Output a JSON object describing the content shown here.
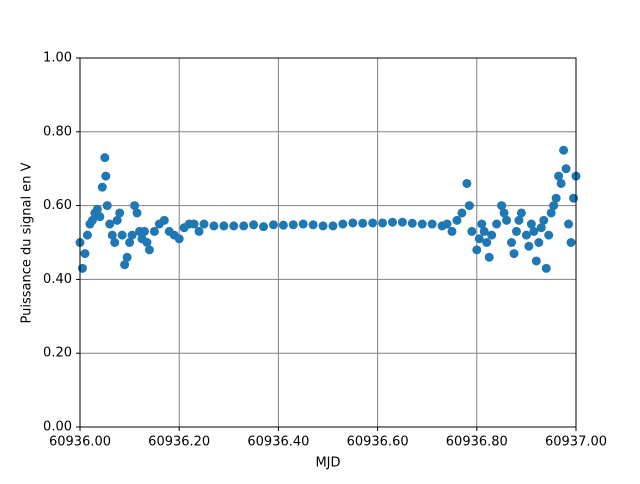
{
  "chart_data": {
    "type": "scatter",
    "xlabel": "MJD",
    "ylabel": "Puissance du signal en V",
    "color": "#1f77b4",
    "grid": true,
    "xlim": [
      60936.0,
      60937.0
    ],
    "xticks": [
      {
        "value": 60936.0,
        "label": "60936.00"
      },
      {
        "value": 60936.2,
        "label": "60936.20"
      },
      {
        "value": 60936.4,
        "label": "60936.40"
      },
      {
        "value": 60936.6,
        "label": "60936.60"
      },
      {
        "value": 60936.8,
        "label": "60936.80"
      },
      {
        "value": 60937.0,
        "label": "60937.00"
      }
    ],
    "ylim": [
      0,
      1
    ],
    "yticks": [
      {
        "value": 0,
        "label": "0.00"
      },
      {
        "value": 0.2,
        "label": "0.20"
      },
      {
        "value": 0.4,
        "label": "0.40"
      },
      {
        "value": 0.6,
        "label": "0.60"
      },
      {
        "value": 0.8,
        "label": "0.80"
      },
      {
        "value": 1,
        "label": "1.00"
      }
    ],
    "x": [
      60936.0,
      60936.005,
      60936.01,
      60936.015,
      60936.02,
      60936.025,
      60936.03,
      60936.035,
      60936.04,
      60936.045,
      60936.05,
      60936.052,
      60936.055,
      60936.06,
      60936.065,
      60936.07,
      60936.075,
      60936.08,
      60936.085,
      60936.09,
      60936.095,
      60936.1,
      60936.105,
      60936.11,
      60936.115,
      60936.12,
      60936.125,
      60936.13,
      60936.135,
      60936.14,
      60936.15,
      60936.16,
      60936.17,
      60936.18,
      60936.19,
      60936.2,
      60936.21,
      60936.22,
      60936.23,
      60936.24,
      60936.25,
      60936.27,
      60936.29,
      60936.31,
      60936.33,
      60936.35,
      60936.37,
      60936.39,
      60936.41,
      60936.43,
      60936.45,
      60936.47,
      60936.49,
      60936.51,
      60936.53,
      60936.55,
      60936.57,
      60936.59,
      60936.61,
      60936.63,
      60936.65,
      60936.67,
      60936.69,
      60936.71,
      60936.73,
      60936.74,
      60936.75,
      60936.76,
      60936.77,
      60936.78,
      60936.785,
      60936.79,
      60936.8,
      60936.805,
      60936.81,
      60936.815,
      60936.82,
      60936.825,
      60936.83,
      60936.84,
      60936.85,
      60936.855,
      60936.86,
      60936.87,
      60936.875,
      60936.88,
      60936.885,
      60936.89,
      60936.9,
      60936.905,
      60936.91,
      60936.915,
      60936.92,
      60936.925,
      60936.93,
      60936.935,
      60936.94,
      60936.945,
      60936.95,
      60936.955,
      60936.96,
      60936.965,
      60936.97,
      60936.975,
      60936.98,
      60936.985,
      60936.99,
      60936.995,
      60937.0
    ],
    "values": [
      0.5,
      0.43,
      0.47,
      0.52,
      0.55,
      0.56,
      0.58,
      0.59,
      0.57,
      0.65,
      0.73,
      0.68,
      0.6,
      0.55,
      0.52,
      0.5,
      0.56,
      0.58,
      0.52,
      0.44,
      0.46,
      0.5,
      0.52,
      0.6,
      0.58,
      0.53,
      0.51,
      0.53,
      0.5,
      0.48,
      0.53,
      0.55,
      0.56,
      0.53,
      0.52,
      0.51,
      0.54,
      0.55,
      0.55,
      0.53,
      0.55,
      0.545,
      0.545,
      0.545,
      0.545,
      0.548,
      0.543,
      0.548,
      0.547,
      0.548,
      0.55,
      0.548,
      0.545,
      0.545,
      0.55,
      0.553,
      0.552,
      0.553,
      0.553,
      0.555,
      0.555,
      0.552,
      0.55,
      0.55,
      0.545,
      0.55,
      0.53,
      0.56,
      0.58,
      0.66,
      0.6,
      0.53,
      0.48,
      0.51,
      0.55,
      0.53,
      0.5,
      0.46,
      0.52,
      0.55,
      0.6,
      0.58,
      0.56,
      0.5,
      0.47,
      0.53,
      0.56,
      0.58,
      0.52,
      0.49,
      0.55,
      0.53,
      0.45,
      0.5,
      0.54,
      0.56,
      0.43,
      0.52,
      0.58,
      0.6,
      0.62,
      0.68,
      0.66,
      0.75,
      0.7,
      0.55,
      0.5,
      0.62,
      0.68
    ]
  }
}
